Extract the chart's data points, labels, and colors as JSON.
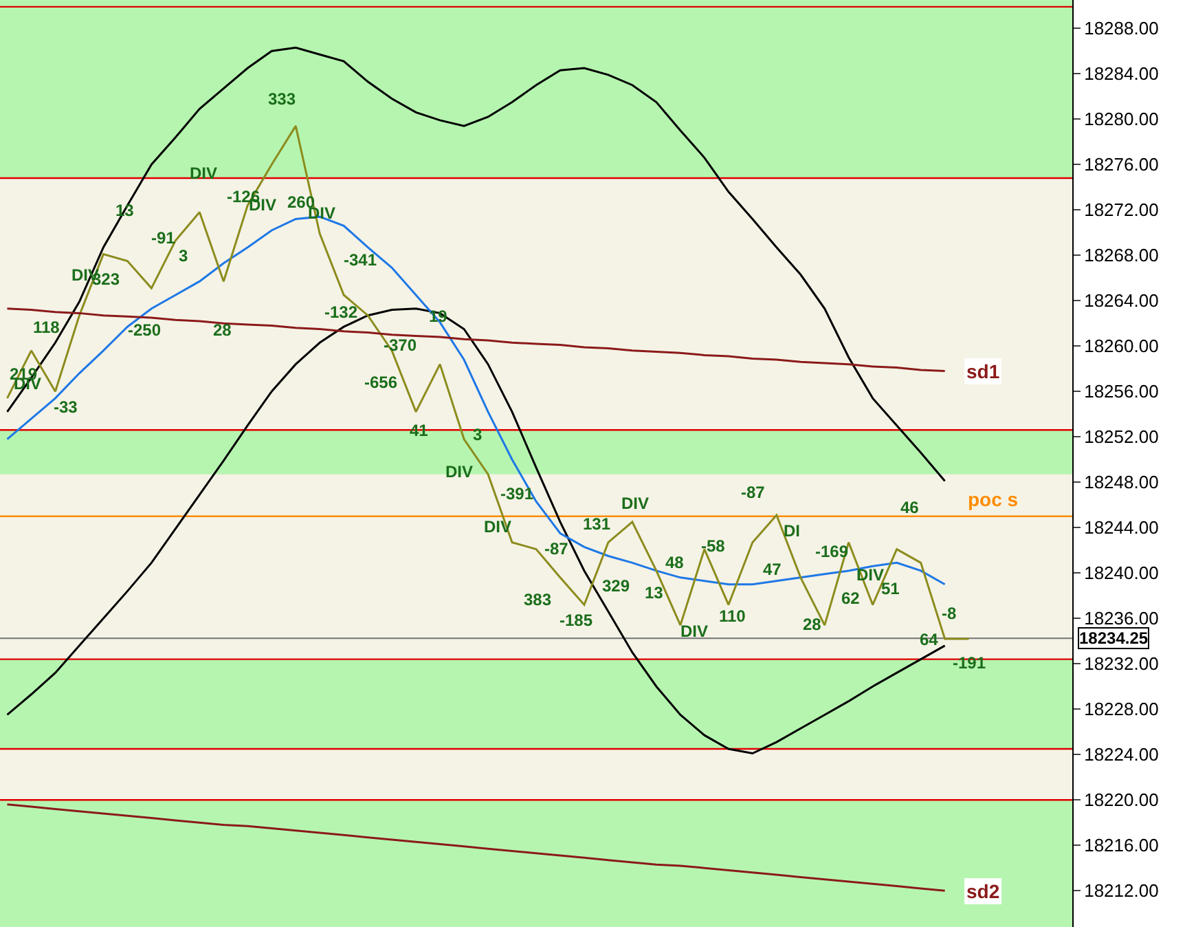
{
  "chart_data": {
    "type": "line",
    "categories": [
      null,
      null,
      null,
      null,
      null,
      null,
      null,
      null,
      null,
      null,
      null,
      null,
      null,
      null,
      null,
      null,
      null,
      null,
      null,
      null,
      null,
      null,
      null,
      null,
      null,
      null,
      null,
      null,
      null,
      null,
      null,
      null,
      null,
      null,
      null,
      null,
      null,
      null,
      null,
      null,
      null,
      null,
      null,
      null,
      null
    ],
    "ylim": [
      18208.8,
      18290.5
    ],
    "yticks": [
      {
        "value": 18212,
        "label": "18212.00"
      },
      {
        "value": 18216,
        "label": "18216.00"
      },
      {
        "value": 18220,
        "label": "18220.00"
      },
      {
        "value": 18224,
        "label": "18224.00"
      },
      {
        "value": 18228,
        "label": "18228.00"
      },
      {
        "value": 18232,
        "label": "18232.00"
      },
      {
        "value": 18236,
        "label": "18236.00"
      },
      {
        "value": 18240,
        "label": "18240.00"
      },
      {
        "value": 18244,
        "label": "18244.00"
      },
      {
        "value": 18248,
        "label": "18248.00"
      },
      {
        "value": 18252,
        "label": "18252.00"
      },
      {
        "value": 18256,
        "label": "18256.00"
      },
      {
        "value": 18260,
        "label": "18260.00"
      },
      {
        "value": 18264,
        "label": "18264.00"
      },
      {
        "value": 18268,
        "label": "18268.00"
      },
      {
        "value": 18272,
        "label": "18272.00"
      },
      {
        "value": 18276,
        "label": "18276.00"
      },
      {
        "value": 18280,
        "label": "18280.00"
      },
      {
        "value": 18284,
        "label": "18284.00"
      },
      {
        "value": 18288,
        "label": "18288.00"
      }
    ],
    "tick_labels": "y",
    "grid": false,
    "legend": false,
    "marker": "none",
    "series": [
      {
        "color": "#000000",
        "values": [
          18254.2,
          18257.2,
          18260.3,
          18263.9,
          18268.7,
          18272.4,
          18276.0,
          18278.4,
          18280.9,
          18282.7,
          18284.5,
          18286.0,
          18286.3,
          18285.7,
          18285.1,
          18283.3,
          18281.8,
          18280.6,
          18279.9,
          18279.4,
          18280.2,
          18281.5,
          18283.0,
          18284.3,
          18284.5,
          18283.9,
          18283.0,
          18281.5,
          18279.0,
          18276.6,
          18273.6,
          18271.2,
          18268.7,
          18266.3,
          18263.3,
          18259.0,
          18255.4,
          18253.0,
          18250.6,
          18248.1,
          null,
          null,
          null,
          null,
          null
        ]
      },
      {
        "color": "#000000",
        "values": [
          18227.5,
          18229.3,
          18231.2,
          18233.6,
          18236.0,
          18238.4,
          18240.9,
          18243.9,
          18246.9,
          18249.9,
          18253.0,
          18256.0,
          18258.4,
          18260.3,
          18261.7,
          18262.7,
          18263.2,
          18263.3,
          18262.9,
          18261.5,
          18258.4,
          18254.2,
          18249.3,
          18244.5,
          18240.2,
          18236.6,
          18233.0,
          18230.0,
          18227.5,
          18225.7,
          18224.5,
          18224.1,
          18225.1,
          18226.3,
          18227.5,
          18228.7,
          18230.0,
          18231.2,
          18232.4,
          18233.6,
          null,
          null,
          null,
          null,
          null
        ]
      },
      {
        "color": "#1e78e6",
        "values": [
          18251.8,
          18253.6,
          18255.4,
          18257.6,
          18259.6,
          18261.7,
          18263.3,
          18264.5,
          18265.7,
          18267.3,
          18268.7,
          18270.2,
          18271.2,
          18271.4,
          18270.6,
          18268.7,
          18266.9,
          18264.5,
          18262.1,
          18258.8,
          18254.2,
          18250.0,
          18246.3,
          18243.5,
          18242.3,
          18241.5,
          18240.9,
          18240.2,
          18239.6,
          18239.3,
          18239.0,
          18239.0,
          18239.3,
          18239.6,
          18239.9,
          18240.2,
          18240.6,
          18240.9,
          18240.2,
          18239.0,
          null,
          null,
          null,
          null,
          null
        ]
      },
      {
        "color": "#8c8c1e",
        "values": [
          18255.4,
          18259.6,
          18256.0,
          18262.7,
          18268.1,
          18267.5,
          18265.1,
          18269.3,
          18271.8,
          18265.7,
          18272.4,
          18276.0,
          18279.4,
          18269.9,
          18264.5,
          18262.7,
          18259.6,
          18254.2,
          18258.4,
          18251.8,
          18248.7,
          18242.7,
          18242.1,
          18239.6,
          18237.2,
          18242.7,
          18244.5,
          18240.2,
          18235.4,
          18242.1,
          18237.2,
          18242.7,
          18245.1,
          18239.6,
          18235.4,
          18242.7,
          18237.2,
          18242.1,
          18240.9,
          18234.2,
          18234.2,
          null,
          null,
          null,
          null
        ]
      },
      {
        "name": "sd1",
        "color": "#8b1a1a",
        "values": [
          18263.3,
          18263.2,
          18263.0,
          18262.9,
          18262.7,
          18262.6,
          18262.5,
          18262.3,
          18262.2,
          18262.0,
          18261.9,
          18261.8,
          18261.6,
          18261.5,
          18261.3,
          18261.2,
          18261.0,
          18260.9,
          18260.8,
          18260.6,
          18260.5,
          18260.3,
          18260.2,
          18260.1,
          18259.9,
          18259.8,
          18259.6,
          18259.5,
          18259.4,
          18259.2,
          18259.1,
          18258.9,
          18258.8,
          18258.6,
          18258.5,
          18258.4,
          18258.2,
          18258.1,
          18257.9,
          18257.8,
          null,
          null,
          null,
          null,
          null
        ]
      },
      {
        "name": "sd2",
        "color": "#8b1a1a",
        "values": [
          18219.6,
          18219.4,
          18219.2,
          18219.0,
          18218.8,
          18218.6,
          18218.4,
          18218.2,
          18218.0,
          18217.8,
          18217.7,
          18217.5,
          18217.3,
          18217.1,
          18216.9,
          18216.7,
          18216.5,
          18216.3,
          18216.1,
          18215.9,
          18215.7,
          18215.5,
          18215.3,
          18215.1,
          18214.9,
          18214.7,
          18214.5,
          18214.3,
          18214.2,
          18214.0,
          18213.8,
          18213.6,
          18213.4,
          18213.2,
          18213.0,
          18212.8,
          18212.6,
          18212.4,
          18212.2,
          18212.0,
          null,
          null,
          null,
          null,
          null
        ]
      }
    ],
    "bands": [
      {
        "axis": "y",
        "from": 18274.8,
        "to": 18290.5,
        "color": "#b6f5b0"
      },
      {
        "axis": "y",
        "from": 18248.7,
        "to": 18252.6,
        "color": "#b6f5b0"
      },
      {
        "axis": "y",
        "from": 18224.5,
        "to": 18232.4,
        "color": "#b6f5b0"
      },
      {
        "axis": "y",
        "from": 18208.8,
        "to": 18220.0,
        "color": "#b6f5b0"
      }
    ],
    "ref_lines": [
      {
        "axis": "y",
        "value": 18289.9,
        "color": "#e00000"
      },
      {
        "axis": "y",
        "value": 18274.8,
        "color": "#e00000"
      },
      {
        "axis": "y",
        "value": 18252.6,
        "color": "#e00000"
      },
      {
        "axis": "y",
        "value": 18232.4,
        "color": "#e00000"
      },
      {
        "axis": "y",
        "value": 18224.5,
        "color": "#e00000"
      },
      {
        "axis": "y",
        "value": 18220.0,
        "color": "#e00000"
      },
      {
        "axis": "y",
        "value": 18245.0,
        "label": "poc s",
        "color": "#ff8c00"
      },
      {
        "axis": "y",
        "value": 18234.25,
        "label": "18234.25",
        "color": "#808080"
      }
    ],
    "annotations": [
      "219",
      "DIV",
      "118",
      "-33",
      "DIV",
      "323",
      "13",
      "-250",
      "-91",
      "3",
      "DIV",
      "28",
      "-126",
      "DIV",
      "333",
      "260",
      "DIV",
      "-132",
      "-341",
      "-656",
      "-370",
      "41",
      "19",
      "DIV",
      "3",
      "DIV",
      "-391",
      "383",
      "-87",
      "-185",
      "131",
      "329",
      "DIV",
      "13",
      "48",
      "DIV",
      "-58",
      "110",
      "-87",
      "47",
      "DI",
      "28",
      "-169",
      "62",
      "DIV",
      "51",
      "46",
      "64",
      "-8",
      "-191"
    ]
  }
}
